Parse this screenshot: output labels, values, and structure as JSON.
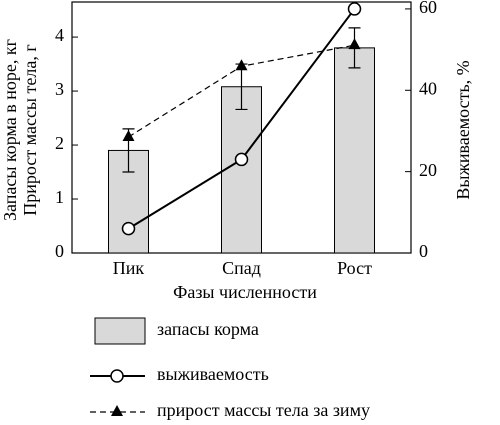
{
  "chart_data": {
    "type": "bar",
    "categories": [
      "Пик",
      "Спад",
      "Рост"
    ],
    "x_label": "Фазы численности",
    "y_label": [
      "Запасы корма в норе, кг",
      "Прирост массы тела, г"
    ],
    "y2_label": "Выживаемость, %",
    "ylim": [
      0,
      4.65
    ],
    "yticks": [
      0,
      1,
      2,
      3,
      4
    ],
    "y2lim": [
      0,
      61.7
    ],
    "y2ticks": [
      0,
      20,
      40,
      60
    ],
    "series": [
      {
        "name": "запасы корма",
        "type": "bar",
        "color": "#d9d9d9",
        "values": [
          1.9,
          3.08,
          3.8
        ],
        "errors": [
          0.4,
          0.42,
          0.37
        ]
      },
      {
        "name": "выживаемость",
        "type": "line",
        "marker": "circle",
        "axis": "y2",
        "color": "#000000",
        "values": [
          6,
          23,
          60
        ]
      },
      {
        "name": "прирост массы тела за зиму",
        "type": "line",
        "marker": "triangle",
        "dashed": true,
        "color": "#000000",
        "values": [
          2.15,
          3.46,
          3.85
        ]
      }
    ]
  }
}
